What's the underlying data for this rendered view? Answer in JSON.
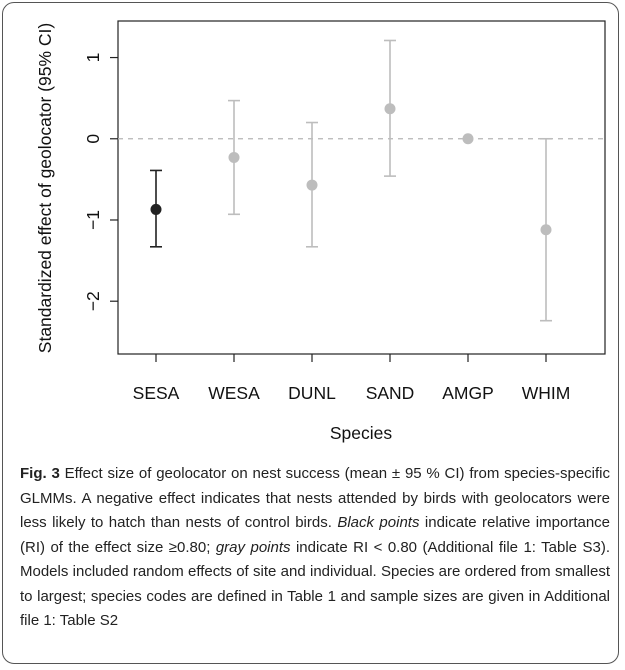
{
  "chart_data": {
    "type": "scatter",
    "xlabel": "Species",
    "ylabel": "Standardized effect of geolocator (95% CI)",
    "categories": [
      "SESA",
      "WESA",
      "DUNL",
      "SAND",
      "AMGP",
      "WHIM"
    ],
    "yticks": [
      1,
      0,
      -1,
      -2
    ],
    "ytick_labels": [
      "1",
      "0",
      "−1",
      "−2"
    ],
    "ylim": [
      -2.65,
      1.45
    ],
    "grid": false,
    "reference_line": 0,
    "points": [
      {
        "category": "SESA",
        "mean": -0.87,
        "lower": -1.33,
        "upper": -0.39,
        "color": "#222222"
      },
      {
        "category": "WESA",
        "mean": -0.23,
        "lower": -0.93,
        "upper": 0.47,
        "color": "#bdbdbd"
      },
      {
        "category": "DUNL",
        "mean": -0.57,
        "lower": -1.33,
        "upper": 0.2,
        "color": "#bdbdbd"
      },
      {
        "category": "SAND",
        "mean": 0.37,
        "lower": -0.46,
        "upper": 1.21,
        "color": "#bdbdbd"
      },
      {
        "category": "AMGP",
        "mean": 0.0,
        "lower": null,
        "upper": null,
        "color": "#bdbdbd"
      },
      {
        "category": "WHIM",
        "mean": -1.12,
        "lower": -2.24,
        "upper": 0.0,
        "color": "#bdbdbd"
      }
    ]
  },
  "caption": {
    "label": "Fig. 3",
    "part1": " Effect size of geolocator on nest success (mean ± 95 % CI) from species-specific GLMMs. A negative effect indicates that nests attended by birds with geolocators were less likely to hatch than nests of control birds. ",
    "black_points": "Black points",
    "part2": " indicate relative importance (RI) of the effect size ≥0.80; ",
    "gray_points": "gray points",
    "part3": " indicate RI < 0.80 (Additional file 1: Table S3). Models included random effects of site and individual. Species are ordered from smallest to largest; species codes are defined in Table 1 and sample sizes are given in Additional file 1: Table S2"
  }
}
